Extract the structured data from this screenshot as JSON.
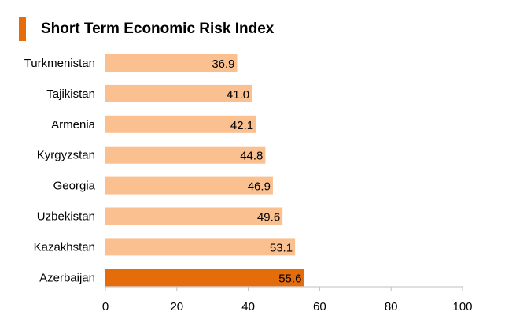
{
  "chart_data": {
    "type": "bar",
    "orientation": "horizontal",
    "title": "Short Term Economic Risk Index",
    "categories": [
      "Turkmenistan",
      "Tajikistan",
      "Armenia",
      "Kyrgyzstan",
      "Georgia",
      "Uzbekistan",
      "Kazakhstan",
      "Azerbaijan"
    ],
    "values": [
      36.9,
      41.0,
      42.1,
      44.8,
      46.9,
      49.6,
      53.1,
      55.6
    ],
    "value_labels": [
      "36.9",
      "41.0",
      "42.1",
      "44.8",
      "46.9",
      "49.6",
      "53.1",
      "55.6"
    ],
    "highlighted_category": "Azerbaijan",
    "xlim": [
      0,
      100
    ],
    "x_ticks": [
      0,
      20,
      40,
      60,
      80,
      100
    ],
    "xlabel": "",
    "ylabel": "",
    "grid": false,
    "colors": {
      "bar": "#fac090",
      "highlight": "#e46c0a",
      "title_marker": "#e46c0a",
      "axis": "#bfbfbf"
    }
  }
}
